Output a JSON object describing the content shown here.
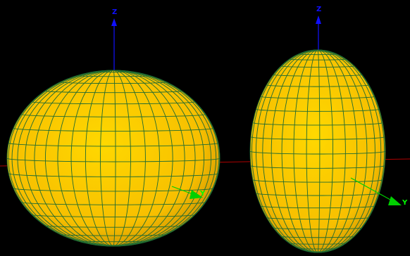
{
  "scene": {
    "background": "#000000",
    "surface_color": "#ffd000",
    "surface_shade": "#d99a00",
    "mesh_color": "#1f6b32",
    "x_axis_color": "#c00000",
    "z_axis_color": "#1010ff",
    "y_axis_color": "#00ff00"
  },
  "views": [
    {
      "name": "oblate-ellipsoid",
      "axis_labels": {
        "z": "Z",
        "y": "Y"
      }
    },
    {
      "name": "prolate-ellipsoid",
      "axis_labels": {
        "z": "Z",
        "y": "Y"
      }
    }
  ]
}
